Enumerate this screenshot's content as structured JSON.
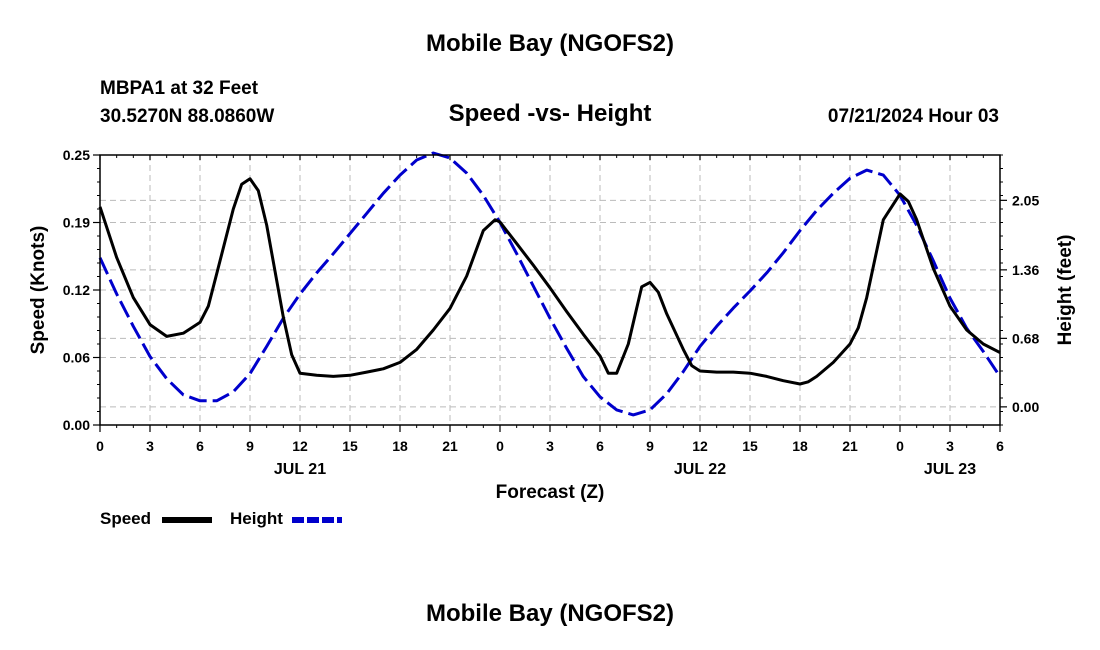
{
  "header": {
    "title": "Mobile Bay (NGOFS2)",
    "station": "MBPA1 at 32 Feet",
    "coords": "30.5270N  88.0860W",
    "subtitle": "Speed -vs- Height",
    "datetime": "07/21/2024 Hour 03"
  },
  "footer": {
    "title": "Mobile Bay (NGOFS2)"
  },
  "chart_data": {
    "type": "line",
    "xlabel": "Forecast (Z)",
    "ylabel_left": "Speed (Knots)",
    "ylabel_right": "Height (feet)",
    "x_range_hours": [
      0,
      54
    ],
    "x_tick_labels": [
      "0",
      "3",
      "6",
      "9",
      "12",
      "15",
      "18",
      "21",
      "0",
      "3",
      "6",
      "9",
      "12",
      "15",
      "18",
      "21",
      "0",
      "3",
      "6"
    ],
    "date_labels": [
      {
        "label": "JUL 21",
        "hour": 12
      },
      {
        "label": "JUL 22",
        "hour": 36
      },
      {
        "label": "JUL 23",
        "hour": 51
      }
    ],
    "y_left": {
      "range": [
        0,
        0.25
      ],
      "ticks": [
        "0.00",
        "0.06",
        "0.12",
        "0.19",
        "0.25"
      ]
    },
    "y_right": {
      "range": [
        -0.18,
        2.5
      ],
      "ticks": [
        "0.00",
        "0.68",
        "1.36",
        "2.05"
      ]
    },
    "grid": true,
    "legend": {
      "placement": "bottom-left",
      "entries": [
        "Speed",
        "Height"
      ]
    },
    "series": [
      {
        "name": "Speed",
        "axis": "left",
        "color": "#000000",
        "style": "solid",
        "points": [
          [
            0,
            0.202
          ],
          [
            1,
            0.155
          ],
          [
            2,
            0.118
          ],
          [
            3,
            0.093
          ],
          [
            4,
            0.082
          ],
          [
            5,
            0.085
          ],
          [
            6,
            0.095
          ],
          [
            6.5,
            0.11
          ],
          [
            7,
            0.14
          ],
          [
            8,
            0.2
          ],
          [
            8.5,
            0.223
          ],
          [
            9,
            0.228
          ],
          [
            9.5,
            0.217
          ],
          [
            10,
            0.185
          ],
          [
            11,
            0.1
          ],
          [
            11.5,
            0.065
          ],
          [
            12,
            0.048
          ],
          [
            13,
            0.046
          ],
          [
            14,
            0.045
          ],
          [
            15,
            0.046
          ],
          [
            16,
            0.049
          ],
          [
            17,
            0.052
          ],
          [
            18,
            0.058
          ],
          [
            19,
            0.07
          ],
          [
            20,
            0.088
          ],
          [
            21,
            0.108
          ],
          [
            22,
            0.138
          ],
          [
            23,
            0.18
          ],
          [
            23.7,
            0.19
          ],
          [
            24,
            0.188
          ],
          [
            25,
            0.168
          ],
          [
            26,
            0.148
          ],
          [
            27,
            0.127
          ],
          [
            28,
            0.105
          ],
          [
            29,
            0.084
          ],
          [
            30,
            0.064
          ],
          [
            30.5,
            0.048
          ],
          [
            31,
            0.048
          ],
          [
            31.7,
            0.075
          ],
          [
            32.5,
            0.128
          ],
          [
            33,
            0.132
          ],
          [
            33.5,
            0.123
          ],
          [
            34,
            0.103
          ],
          [
            35,
            0.07
          ],
          [
            35.5,
            0.055
          ],
          [
            36,
            0.05
          ],
          [
            37,
            0.049
          ],
          [
            38,
            0.049
          ],
          [
            39,
            0.048
          ],
          [
            40,
            0.045
          ],
          [
            41,
            0.041
          ],
          [
            42,
            0.038
          ],
          [
            42.5,
            0.04
          ],
          [
            43,
            0.045
          ],
          [
            44,
            0.058
          ],
          [
            45,
            0.075
          ],
          [
            45.5,
            0.09
          ],
          [
            46,
            0.118
          ],
          [
            47,
            0.19
          ],
          [
            48,
            0.214
          ],
          [
            48.5,
            0.207
          ],
          [
            49,
            0.19
          ],
          [
            50,
            0.145
          ],
          [
            51,
            0.11
          ],
          [
            52,
            0.088
          ],
          [
            53,
            0.075
          ],
          [
            54,
            0.067
          ]
        ]
      },
      {
        "name": "Height",
        "axis": "right",
        "color": "#0000cc",
        "style": "dashed",
        "points": [
          [
            0,
            1.48
          ],
          [
            1,
            1.12
          ],
          [
            2,
            0.8
          ],
          [
            3,
            0.5
          ],
          [
            4,
            0.28
          ],
          [
            5,
            0.12
          ],
          [
            6,
            0.06
          ],
          [
            7,
            0.06
          ],
          [
            8,
            0.15
          ],
          [
            9,
            0.33
          ],
          [
            10,
            0.6
          ],
          [
            11,
            0.88
          ],
          [
            12,
            1.12
          ],
          [
            13,
            1.33
          ],
          [
            14,
            1.52
          ],
          [
            15,
            1.72
          ],
          [
            16,
            1.92
          ],
          [
            17,
            2.12
          ],
          [
            18,
            2.3
          ],
          [
            19,
            2.45
          ],
          [
            20,
            2.52
          ],
          [
            21,
            2.47
          ],
          [
            22,
            2.32
          ],
          [
            23,
            2.1
          ],
          [
            24,
            1.83
          ],
          [
            25,
            1.52
          ],
          [
            26,
            1.2
          ],
          [
            27,
            0.88
          ],
          [
            28,
            0.58
          ],
          [
            29,
            0.3
          ],
          [
            30,
            0.1
          ],
          [
            31,
            -0.03
          ],
          [
            32,
            -0.08
          ],
          [
            33,
            -0.03
          ],
          [
            34,
            0.13
          ],
          [
            35,
            0.35
          ],
          [
            36,
            0.6
          ],
          [
            37,
            0.8
          ],
          [
            38,
            0.98
          ],
          [
            39,
            1.15
          ],
          [
            40,
            1.33
          ],
          [
            41,
            1.53
          ],
          [
            42,
            1.75
          ],
          [
            43,
            1.95
          ],
          [
            44,
            2.12
          ],
          [
            45,
            2.27
          ],
          [
            46,
            2.35
          ],
          [
            47,
            2.3
          ],
          [
            48,
            2.1
          ],
          [
            49,
            1.8
          ],
          [
            50,
            1.45
          ],
          [
            51,
            1.08
          ],
          [
            52,
            0.78
          ],
          [
            53,
            0.55
          ],
          [
            54,
            0.3
          ]
        ]
      }
    ]
  }
}
